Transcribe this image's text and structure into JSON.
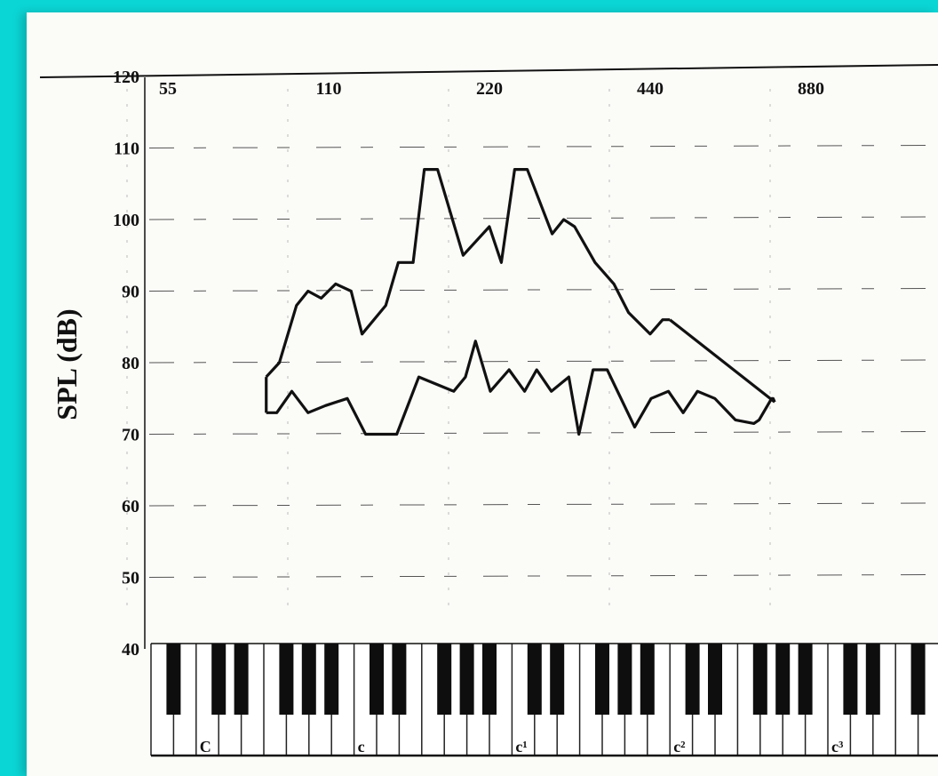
{
  "chart_data": {
    "type": "line",
    "title": "",
    "xlabel": "",
    "ylabel": "SPL (dB)",
    "x_scale": "log2",
    "x_ticks": [
      55,
      110,
      220,
      440,
      880
    ],
    "y_ticks": [
      120,
      110,
      100,
      90,
      80,
      70,
      60,
      50,
      40
    ],
    "ylim": [
      40,
      120
    ],
    "grid": "dashed-horizontal",
    "keyboard_labels": [
      "C",
      "c",
      "c¹",
      "c²",
      "c³"
    ],
    "series": [
      {
        "values": [
          [
            86,
            78
          ],
          [
            91,
            80
          ],
          [
            98,
            88
          ],
          [
            103,
            90
          ],
          [
            109,
            89
          ],
          [
            116,
            91
          ],
          [
            124,
            90
          ],
          [
            130,
            84
          ],
          [
            144,
            88
          ],
          [
            152,
            94
          ],
          [
            162,
            94
          ],
          [
            170,
            107
          ],
          [
            180,
            107
          ],
          [
            201,
            95
          ],
          [
            225,
            99
          ],
          [
            237,
            94
          ],
          [
            251,
            107
          ],
          [
            265,
            107
          ],
          [
            295,
            98
          ],
          [
            310,
            100
          ],
          [
            325,
            99
          ],
          [
            355,
            94
          ],
          [
            385,
            91
          ],
          [
            410,
            87
          ],
          [
            450,
            84
          ],
          [
            475,
            86
          ],
          [
            490,
            86
          ]
        ]
      },
      {
        "values": [
          [
            86,
            73
          ],
          [
            90,
            73
          ],
          [
            96,
            76
          ],
          [
            103,
            73
          ],
          [
            111,
            74
          ],
          [
            122,
            75
          ],
          [
            132,
            70
          ],
          [
            151,
            70
          ],
          [
            166,
            78
          ],
          [
            193,
            76
          ],
          [
            203,
            78
          ],
          [
            212,
            83
          ],
          [
            226,
            76
          ],
          [
            245,
            79
          ],
          [
            262,
            76
          ],
          [
            276,
            79
          ],
          [
            294,
            76
          ],
          [
            317,
            78
          ],
          [
            331,
            70
          ],
          [
            352,
            79
          ],
          [
            374,
            79
          ],
          [
            421,
            71
          ],
          [
            452,
            75
          ],
          [
            487,
            76
          ],
          [
            519,
            73
          ],
          [
            552,
            76
          ],
          [
            595,
            75
          ],
          [
            650,
            72
          ],
          [
            704,
            71.5
          ],
          [
            720,
            72
          ],
          [
            760,
            75
          ],
          [
            765,
            75
          ],
          [
            770,
            74.5
          ]
        ]
      }
    ]
  }
}
